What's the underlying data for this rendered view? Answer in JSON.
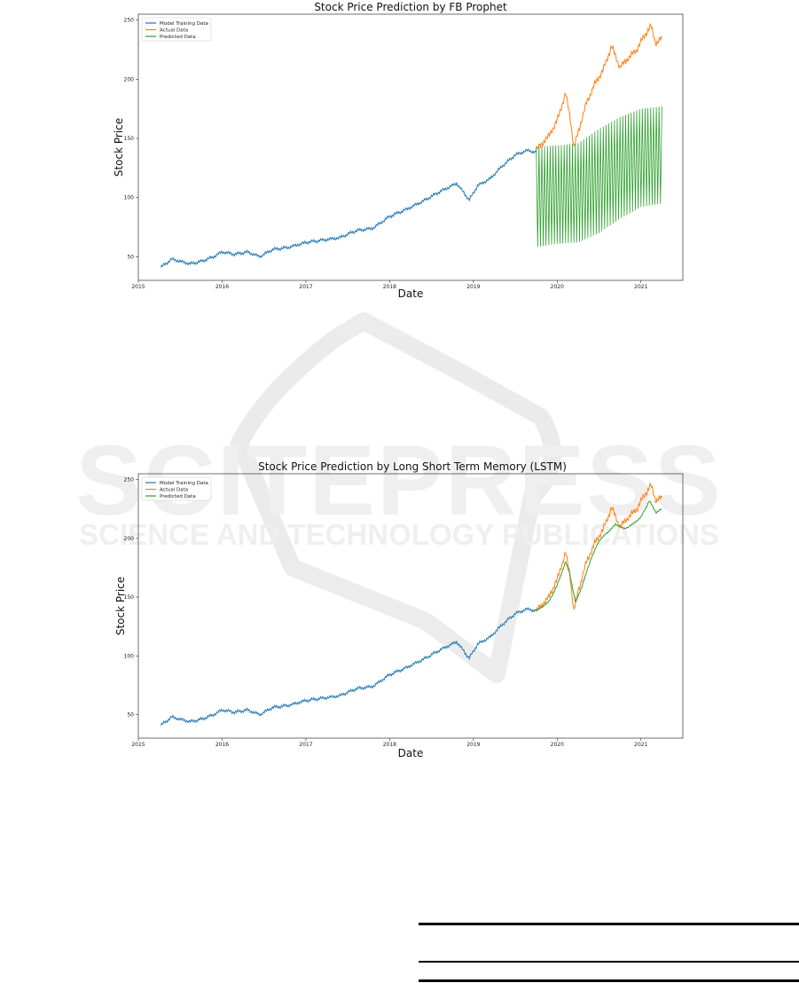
{
  "watermark": {
    "line1": "SCITEPRESS",
    "line2": "SCIENCE AND TECHNOLOGY PUBLICATIONS"
  },
  "colors": {
    "training": "#1f77b4",
    "actual": "#ff7f0e",
    "predicted": "#2ca02c"
  },
  "chart_data": [
    {
      "type": "line",
      "title": "Stock Price Prediction by FB Prophet",
      "xlabel": "Date",
      "ylabel": "Stock Price",
      "xlim": [
        2015.0,
        2021.5
      ],
      "ylim": [
        30,
        255
      ],
      "x_ticks": [
        "2015",
        "2016",
        "2017",
        "2018",
        "2019",
        "2020",
        "2021"
      ],
      "y_ticks": [
        50,
        100,
        150,
        200,
        250
      ],
      "legend_position": "top-left",
      "series": [
        {
          "name": "Model Training Data",
          "x": [
            2015.27,
            2015.4,
            2015.5,
            2015.62,
            2015.75,
            2015.9,
            2016.0,
            2016.15,
            2016.3,
            2016.45,
            2016.6,
            2016.8,
            2017.0,
            2017.2,
            2017.4,
            2017.6,
            2017.8,
            2018.0,
            2018.2,
            2018.4,
            2018.6,
            2018.8,
            2018.95,
            2019.05,
            2019.2,
            2019.35,
            2019.5,
            2019.65,
            2019.75
          ],
          "y": [
            41,
            48,
            46,
            44,
            46,
            50,
            54,
            52,
            54,
            50,
            56,
            58,
            62,
            64,
            66,
            72,
            74,
            84,
            90,
            97,
            105,
            112,
            98,
            110,
            116,
            127,
            136,
            140,
            138
          ]
        },
        {
          "name": "Actual Data",
          "x": [
            2019.75,
            2019.9,
            2020.0,
            2020.1,
            2020.15,
            2020.2,
            2020.25,
            2020.35,
            2020.45,
            2020.55,
            2020.65,
            2020.75,
            2020.85,
            2020.95,
            2021.05,
            2021.12,
            2021.18,
            2021.25
          ],
          "y": [
            140,
            152,
            165,
            188,
            170,
            142,
            155,
            180,
            196,
            208,
            228,
            210,
            218,
            225,
            238,
            245,
            230,
            235
          ]
        },
        {
          "name": "Predicted Data",
          "upper": {
            "x": [
              2019.75,
              2020.0,
              2020.25,
              2020.5,
              2020.75,
              2021.0,
              2021.25
            ],
            "y": [
              143,
              144,
              146,
              158,
              168,
              175,
              177
            ]
          },
          "lower": {
            "x": [
              2019.75,
              2020.0,
              2020.25,
              2020.5,
              2020.75,
              2021.0,
              2021.25
            ],
            "y": [
              58,
              61,
              62,
              70,
              82,
              92,
              95
            ]
          }
        }
      ]
    },
    {
      "type": "line",
      "title": "Stock Price Prediction by Long Short Term Memory (LSTM)",
      "xlabel": "Date",
      "ylabel": "Stock Price",
      "xlim": [
        2015.0,
        2021.5
      ],
      "ylim": [
        30,
        255
      ],
      "x_ticks": [
        "2015",
        "2016",
        "2017",
        "2018",
        "2019",
        "2020",
        "2021"
      ],
      "y_ticks": [
        50,
        100,
        150,
        200,
        250
      ],
      "legend_position": "top-left",
      "series": [
        {
          "name": "Model Training Data",
          "x": [
            2015.27,
            2015.4,
            2015.5,
            2015.62,
            2015.75,
            2015.9,
            2016.0,
            2016.15,
            2016.3,
            2016.45,
            2016.6,
            2016.8,
            2017.0,
            2017.2,
            2017.4,
            2017.6,
            2017.8,
            2018.0,
            2018.2,
            2018.4,
            2018.6,
            2018.8,
            2018.95,
            2019.05,
            2019.2,
            2019.35,
            2019.5,
            2019.65,
            2019.75
          ],
          "y": [
            41,
            48,
            46,
            44,
            46,
            50,
            54,
            52,
            54,
            50,
            56,
            58,
            62,
            64,
            66,
            72,
            74,
            84,
            90,
            97,
            105,
            112,
            98,
            110,
            116,
            127,
            136,
            140,
            138
          ]
        },
        {
          "name": "Actual Data",
          "x": [
            2019.75,
            2019.9,
            2020.0,
            2020.1,
            2020.15,
            2020.2,
            2020.25,
            2020.35,
            2020.45,
            2020.55,
            2020.65,
            2020.75,
            2020.85,
            2020.95,
            2021.05,
            2021.12,
            2021.18,
            2021.25
          ],
          "y": [
            138,
            150,
            165,
            188,
            170,
            138,
            155,
            180,
            196,
            208,
            226,
            210,
            218,
            225,
            238,
            245,
            232,
            235
          ]
        },
        {
          "name": "Predicted Data",
          "x": [
            2019.75,
            2019.9,
            2020.0,
            2020.1,
            2020.15,
            2020.22,
            2020.3,
            2020.4,
            2020.5,
            2020.6,
            2020.7,
            2020.8,
            2020.9,
            2021.0,
            2021.1,
            2021.18,
            2021.25
          ],
          "y": [
            138,
            146,
            160,
            180,
            170,
            145,
            160,
            182,
            198,
            205,
            212,
            208,
            212,
            218,
            232,
            222,
            225
          ]
        }
      ]
    }
  ]
}
